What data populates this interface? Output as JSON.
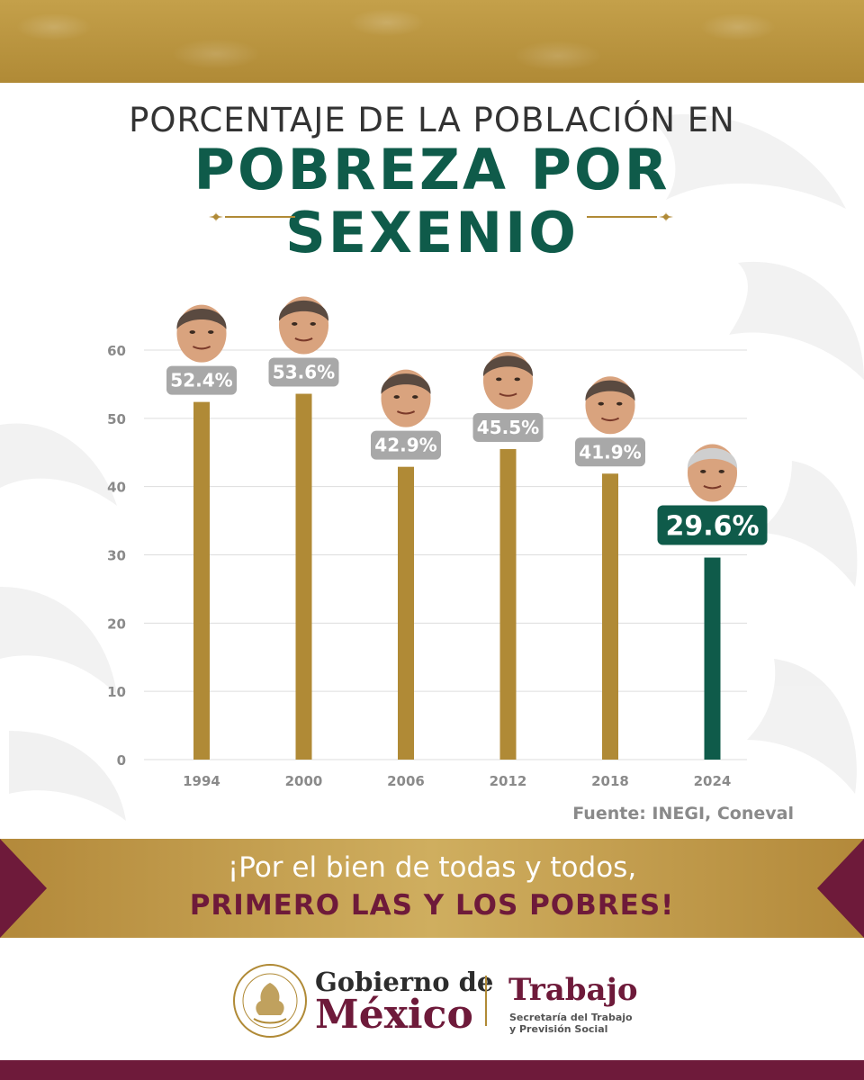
{
  "header": {
    "title_line1": "PORCENTAJE DE LA POBLACIÓN EN",
    "title_line2": "POBREZA POR",
    "title_line3": "SEXENIO"
  },
  "chart_data": {
    "type": "bar",
    "categories": [
      "1994",
      "2000",
      "2006",
      "2012",
      "2018",
      "2024"
    ],
    "values": [
      52.4,
      53.6,
      42.9,
      45.5,
      41.9,
      29.6
    ],
    "value_labels": [
      "52.4%",
      "53.6%",
      "42.9%",
      "45.5%",
      "41.9%",
      "29.6%"
    ],
    "yticks": [
      0,
      10,
      20,
      30,
      40,
      50,
      60
    ],
    "ylim": [
      0,
      60
    ],
    "grid": true,
    "legend": "none",
    "highlight_index": 5,
    "colors": {
      "bar": "#b08a36",
      "bar_highlight": "#0f5b4a",
      "label_bg": "#a8a8a8",
      "label_bg_highlight": "#0f5b4a",
      "axis_text": "#8a8a8a",
      "grid": "#dddddd"
    }
  },
  "source": "Fuente: INEGI, Coneval",
  "slogan": {
    "line1": "¡Por el bien de todas y todos,",
    "line2": "PRIMERO LAS Y LOS POBRES!"
  },
  "footer": {
    "gob_line1": "Gobierno de",
    "gob_line2": "México",
    "trabajo": "Trabajo",
    "trabajo_sub_line1": "Secretaría del Trabajo",
    "trabajo_sub_line2": "y Previsión Social",
    "seal_icon": "mexico-coat-of-arms-seal-icon"
  },
  "colors": {
    "green": "#0f5b4a",
    "gold": "#b08a36",
    "guinda": "#6e1a3a"
  }
}
